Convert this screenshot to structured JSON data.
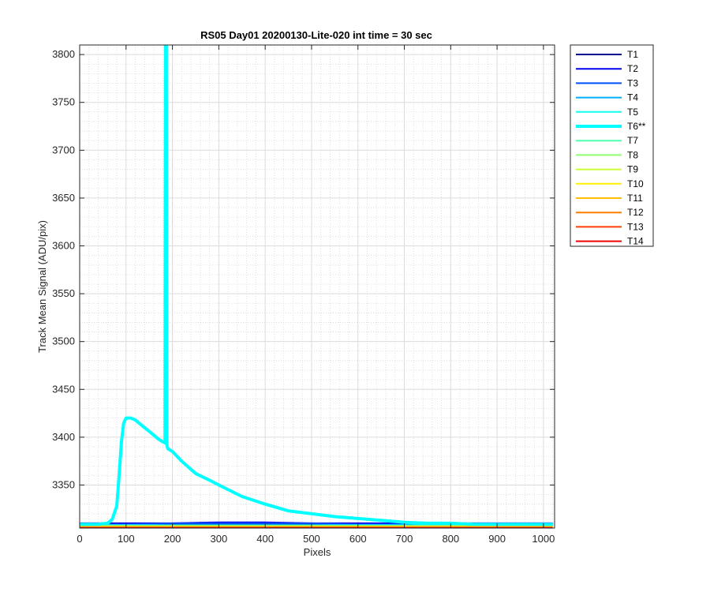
{
  "chart_data": {
    "type": "line",
    "title": "RS05 Day01 20200130-Lite-020 int time = 30 sec",
    "xlabel": "Pixels",
    "ylabel": "Track Mean Signal (ADU/pix)",
    "xlim": [
      0,
      1024
    ],
    "ylim": [
      3305,
      3810
    ],
    "xticks": [
      0,
      100,
      200,
      300,
      400,
      500,
      600,
      700,
      800,
      900,
      1000
    ],
    "yticks": [
      3350,
      3400,
      3450,
      3500,
      3550,
      3600,
      3650,
      3700,
      3750,
      3800
    ],
    "grid": true,
    "minor_grid": true,
    "legend_position": "outside-right",
    "highlighted_series": "T6**",
    "series": [
      {
        "name": "T1",
        "color": "#00008f",
        "x": [
          0,
          100,
          200,
          300,
          400,
          500,
          600,
          700,
          800,
          900,
          1020
        ],
        "y": [
          3309,
          3309,
          3309,
          3309,
          3309,
          3309,
          3309,
          3309,
          3309,
          3309,
          3309
        ]
      },
      {
        "name": "T2",
        "color": "#0000ef",
        "x": [
          0,
          100,
          200,
          300,
          400,
          500,
          600,
          700,
          800,
          900,
          1020
        ],
        "y": [
          3310,
          3310,
          3310,
          3311,
          3311,
          3310,
          3310,
          3310,
          3310,
          3310,
          3310
        ]
      },
      {
        "name": "T3",
        "color": "#0050ff",
        "x": [
          0,
          100,
          200,
          300,
          400,
          500,
          600,
          700,
          800,
          900,
          1020
        ],
        "y": [
          3309,
          3309,
          3310,
          3310,
          3310,
          3310,
          3309,
          3309,
          3309,
          3309,
          3309
        ]
      },
      {
        "name": "T4",
        "color": "#00afff",
        "x": [
          0,
          100,
          200,
          300,
          400,
          500,
          600,
          700,
          800,
          900,
          1020
        ],
        "y": [
          3308,
          3308,
          3308,
          3308,
          3308,
          3308,
          3308,
          3308,
          3308,
          3308,
          3308
        ]
      },
      {
        "name": "T5",
        "color": "#10ffef",
        "x": [
          0,
          100,
          200,
          300,
          400,
          500,
          600,
          700,
          800,
          900,
          1020
        ],
        "y": [
          3308,
          3308,
          3308,
          3308,
          3308,
          3308,
          3308,
          3308,
          3308,
          3308,
          3308
        ]
      },
      {
        "name": "T6**",
        "color": "#00ffff",
        "x": [
          0,
          20,
          40,
          60,
          70,
          80,
          85,
          90,
          95,
          100,
          105,
          110,
          120,
          130,
          140,
          150,
          160,
          170,
          180,
          184,
          185,
          186,
          187,
          188,
          190,
          200,
          220,
          250,
          280,
          300,
          350,
          400,
          450,
          500,
          550,
          600,
          650,
          700,
          750,
          800,
          850,
          900,
          950,
          1000,
          1020
        ],
        "y": [
          3309,
          3309,
          3309,
          3310,
          3314,
          3328,
          3360,
          3395,
          3415,
          3420,
          3420,
          3420,
          3418,
          3414,
          3410,
          3406,
          3402,
          3398,
          3395,
          3394,
          3810,
          3810,
          3810,
          3392,
          3388,
          3385,
          3375,
          3362,
          3355,
          3350,
          3338,
          3330,
          3323,
          3320,
          3317,
          3315,
          3313,
          3311,
          3310,
          3310,
          3309,
          3309,
          3309,
          3309,
          3309
        ]
      },
      {
        "name": "T7",
        "color": "#50ffaf",
        "x": [
          0,
          100,
          200,
          300,
          400,
          500,
          600,
          700,
          800,
          900,
          1020
        ],
        "y": [
          3307,
          3307,
          3307,
          3307,
          3307,
          3307,
          3307,
          3307,
          3307,
          3307,
          3307
        ]
      },
      {
        "name": "T8",
        "color": "#8fff70",
        "x": [
          0,
          100,
          200,
          300,
          400,
          500,
          600,
          700,
          800,
          900,
          1020
        ],
        "y": [
          3306,
          3306,
          3307,
          3307,
          3307,
          3307,
          3307,
          3306,
          3306,
          3306,
          3306
        ]
      },
      {
        "name": "T9",
        "color": "#cfff30",
        "x": [
          0,
          100,
          200,
          300,
          400,
          500,
          600,
          700,
          800,
          900,
          1020
        ],
        "y": [
          3306,
          3306,
          3306,
          3306,
          3306,
          3306,
          3306,
          3306,
          3306,
          3306,
          3306
        ]
      },
      {
        "name": "T10",
        "color": "#ffef00",
        "x": [
          0,
          100,
          200,
          300,
          400,
          500,
          600,
          700,
          800,
          900,
          1020
        ],
        "y": [
          3307,
          3307,
          3307,
          3307,
          3307,
          3307,
          3307,
          3307,
          3307,
          3307,
          3307
        ]
      },
      {
        "name": "T11",
        "color": "#ffbf00",
        "x": [
          0,
          100,
          200,
          300,
          400,
          500,
          600,
          700,
          800,
          900,
          1020
        ],
        "y": [
          3306,
          3306,
          3306,
          3306,
          3306,
          3306,
          3306,
          3306,
          3306,
          3306,
          3306
        ]
      },
      {
        "name": "T12",
        "color": "#ff7f00",
        "x": [
          0,
          100,
          200,
          300,
          400,
          500,
          600,
          700,
          800,
          900,
          1020
        ],
        "y": [
          3306,
          3306,
          3306,
          3306,
          3306,
          3306,
          3306,
          3306,
          3306,
          3306,
          3306
        ]
      },
      {
        "name": "T13",
        "color": "#ff3f00",
        "x": [
          0,
          100,
          200,
          300,
          400,
          500,
          600,
          700,
          800,
          900,
          1020
        ],
        "y": [
          3305,
          3305,
          3305,
          3305,
          3305,
          3305,
          3305,
          3305,
          3305,
          3305,
          3305
        ]
      },
      {
        "name": "T14",
        "color": "#ef0000",
        "x": [
          0,
          100,
          200,
          300,
          400,
          500,
          600,
          700,
          800,
          900,
          1020
        ],
        "y": [
          3305,
          3305,
          3305,
          3305,
          3305,
          3305,
          3305,
          3305,
          3305,
          3305,
          3305
        ]
      }
    ]
  }
}
